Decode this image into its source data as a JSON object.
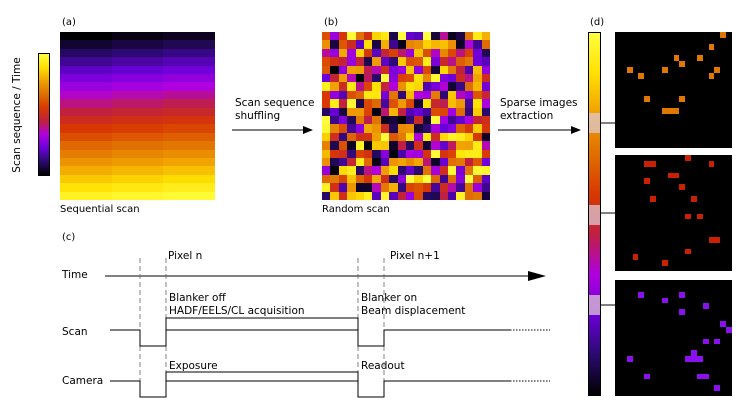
{
  "panel_labels": {
    "a": "(a)",
    "b": "(b)",
    "c": "(c)",
    "d": "(d)"
  },
  "colorbar_label": "Scan sequence / Time",
  "captions": {
    "sequential": "Sequential scan",
    "random": "Random scan"
  },
  "arrows": {
    "shuffle_line1": "Scan sequence",
    "shuffle_line2": "shuffling",
    "extract_line1": "Sparse images",
    "extract_line2": "extraction"
  },
  "timing": {
    "pixel_n": "Pixel n",
    "pixel_n1": "Pixel n+1",
    "time": "Time",
    "scan": "Scan",
    "camera": "Camera",
    "blanker_off": "Blanker off",
    "acquisition": "HADF/EELS/CL acquisition",
    "blanker_on": "Blanker on",
    "beam_disp": "Beam displacement",
    "exposure": "Exposure",
    "readout": "Readout"
  },
  "colormap": [
    "#000000",
    "#2a0a6e",
    "#6a00d8",
    "#b000e0",
    "#c02040",
    "#d83800",
    "#e07000",
    "#f0a000",
    "#ffe000",
    "#ffff40"
  ]
}
